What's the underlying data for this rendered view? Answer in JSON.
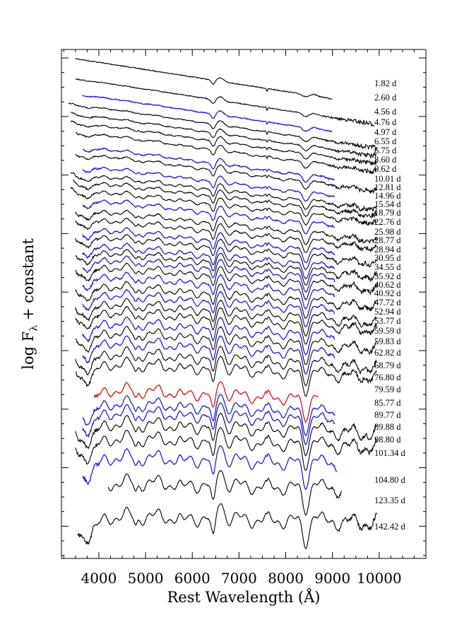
{
  "chart_data": {
    "type": "line",
    "xlabel": "Rest Wavelength (Å)",
    "ylabel_parts": {
      "main": "log F",
      "sub": "λ",
      "tail": " + constant"
    },
    "xlim": [
      3200,
      11000
    ],
    "xticks": [
      4000,
      5000,
      6000,
      7000,
      8000,
      9000,
      10000
    ],
    "xtick_labels": [
      "4000",
      "5000",
      "6000",
      "7000",
      "8000",
      "9000",
      "10000"
    ],
    "grid": false,
    "colors": {
      "default": "#000000",
      "blue": "#1f1fd6",
      "red": "#e01010"
    },
    "series": [
      {
        "name": "1.82 d",
        "color": "black",
        "x_range": [
          3500,
          9000
        ]
      },
      {
        "name": "2.60 d",
        "color": "black",
        "x_range": [
          3500,
          9900
        ]
      },
      {
        "name": "4.56 d",
        "color": "blue",
        "x_range": [
          3650,
          9000
        ]
      },
      {
        "name": "4.76 d",
        "color": "black",
        "x_range": [
          3350,
          9950
        ]
      },
      {
        "name": "4.97 d",
        "color": "black",
        "x_range": [
          3400,
          9950
        ]
      },
      {
        "name": "6.55 d",
        "color": "black",
        "x_range": [
          3400,
          9950
        ]
      },
      {
        "name": "6.75 d",
        "color": "black",
        "x_range": [
          3500,
          9950
        ]
      },
      {
        "name": "8.60 d",
        "color": "blue",
        "x_range": [
          3650,
          9050
        ]
      },
      {
        "name": "9.62 d",
        "color": "black",
        "x_range": [
          3500,
          9950
        ]
      },
      {
        "name": "10.01 d",
        "color": "blue",
        "x_range": [
          3650,
          9050
        ]
      },
      {
        "name": "12.81 d",
        "color": "black",
        "x_range": [
          3400,
          9950
        ]
      },
      {
        "name": "14.96 d",
        "color": "black",
        "x_range": [
          3450,
          9950
        ]
      },
      {
        "name": "15.54 d",
        "color": "black",
        "x_range": [
          3400,
          9950
        ]
      },
      {
        "name": "18.79 d",
        "color": "blue",
        "x_range": [
          3650,
          9050
        ]
      },
      {
        "name": "22.76 d",
        "color": "black",
        "x_range": [
          3500,
          9950
        ]
      },
      {
        "name": "25.98 d",
        "color": "black",
        "x_range": [
          3500,
          9950
        ]
      },
      {
        "name": "28.77 d",
        "color": "blue",
        "x_range": [
          3650,
          9050
        ]
      },
      {
        "name": "28.94 d",
        "color": "black",
        "x_range": [
          3500,
          9950
        ]
      },
      {
        "name": "30.95 d",
        "color": "blue",
        "x_range": [
          3650,
          9050
        ]
      },
      {
        "name": "34.55 d",
        "color": "black",
        "x_range": [
          3500,
          9950
        ]
      },
      {
        "name": "35.92 d",
        "color": "blue",
        "x_range": [
          3650,
          9050
        ]
      },
      {
        "name": "40.62 d",
        "color": "black",
        "x_range": [
          3500,
          9950
        ]
      },
      {
        "name": "40.92 d",
        "color": "blue",
        "x_range": [
          3650,
          9050
        ]
      },
      {
        "name": "47.72 d",
        "color": "black",
        "x_range": [
          3500,
          9950
        ]
      },
      {
        "name": "52.94 d",
        "color": "blue",
        "x_range": [
          3650,
          9050
        ]
      },
      {
        "name": "53.77 d",
        "color": "black",
        "x_range": [
          3500,
          9950
        ]
      },
      {
        "name": "59.59 d",
        "color": "black",
        "x_range": [
          3500,
          9950
        ]
      },
      {
        "name": "59.83 d",
        "color": "blue",
        "x_range": [
          3650,
          9050
        ]
      },
      {
        "name": "62.82 d",
        "color": "black",
        "x_range": [
          3500,
          9950
        ]
      },
      {
        "name": "68.79 d",
        "color": "blue",
        "x_range": [
          3650,
          9050
        ]
      },
      {
        "name": "76.80 d",
        "color": "black",
        "x_range": [
          3500,
          9950
        ]
      },
      {
        "name": "79.59 d",
        "color": "black",
        "x_range": [
          3500,
          9950
        ]
      },
      {
        "name": "85.77 d",
        "color": "red",
        "x_range": [
          3900,
          8700
        ]
      },
      {
        "name": "89.77 d",
        "color": "blue",
        "x_range": [
          3650,
          9050
        ]
      },
      {
        "name": "89.88 d",
        "color": "blue",
        "x_range": [
          3650,
          9050
        ]
      },
      {
        "name": "98.80 d",
        "color": "black",
        "x_range": [
          3500,
          9950
        ]
      },
      {
        "name": "101.34 d",
        "color": "black",
        "x_range": [
          3500,
          9950
        ]
      },
      {
        "name": "104.80 d",
        "color": "blue",
        "x_range": [
          3650,
          9100
        ]
      },
      {
        "name": "123.35 d",
        "color": "black",
        "x_range": [
          4200,
          9200
        ]
      },
      {
        "name": "142.42 d",
        "color": "black",
        "x_range": [
          3550,
          9950
        ]
      }
    ]
  }
}
